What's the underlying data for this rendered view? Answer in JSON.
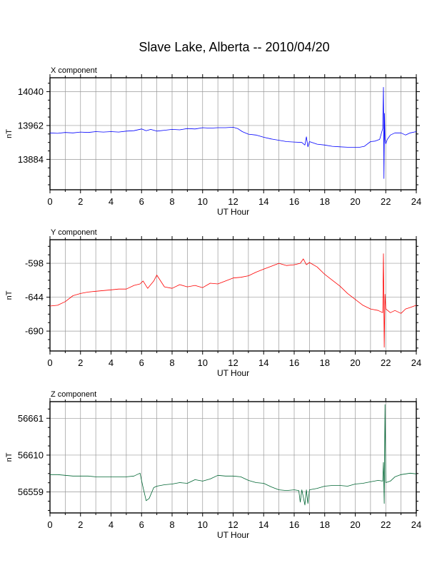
{
  "title": "Slave Lake, Alberta -- 2010/04/20",
  "chart_data": [
    {
      "type": "line",
      "component_label": "X component",
      "ylabel": "nT",
      "xlabel": "UT Hour",
      "color": "#0000ff",
      "xlim": [
        0,
        24
      ],
      "ylim": [
        13814,
        14072
      ],
      "x_ticks": [
        "0",
        "2",
        "4",
        "6",
        "8",
        "10",
        "12",
        "14",
        "16",
        "18",
        "20",
        "22",
        "24"
      ],
      "y_ticks": [
        13884,
        13962,
        14040
      ],
      "y_tick_labels": [
        "13884",
        "13962",
        "14040"
      ],
      "grid": true,
      "series": [
        {
          "x": [
            0,
            0.5,
            1,
            1.5,
            2,
            2.5,
            3,
            3.5,
            4,
            4.5,
            5,
            5.5,
            6,
            6.3,
            6.6,
            7,
            7.5,
            8,
            8.5,
            9,
            9.5,
            10,
            10.5,
            11,
            11.5,
            12,
            12.3,
            12.6,
            13,
            13.5,
            14,
            14.5,
            15,
            15.5,
            16,
            16.5,
            16.7,
            16.8,
            16.9,
            17,
            17.5,
            18,
            18.5,
            19,
            19.5,
            20,
            20.3,
            20.6,
            21,
            21.3,
            21.6,
            21.8,
            21.85,
            21.88,
            21.92,
            21.95,
            22,
            22.1,
            22.3,
            22.6,
            23,
            23.3,
            23.6,
            24
          ],
          "values": [
            13945,
            13944,
            13946,
            13945,
            13947,
            13946,
            13948,
            13947,
            13948,
            13947,
            13949,
            13950,
            13954,
            13950,
            13953,
            13949,
            13951,
            13953,
            13952,
            13955,
            13954,
            13957,
            13956,
            13957,
            13957,
            13958,
            13955,
            13948,
            13942,
            13940,
            13935,
            13931,
            13928,
            13925,
            13924,
            13923,
            13917,
            13936,
            13913,
            13925,
            13919,
            13917,
            13914,
            13913,
            13912,
            13912,
            13912,
            13914,
            13925,
            13926,
            13930,
            13955,
            14050,
            13840,
            13990,
            13930,
            13920,
            13930,
            13940,
            13945,
            13945,
            13940,
            13945,
            13948
          ]
        }
      ]
    },
    {
      "type": "line",
      "component_label": "Y component",
      "ylabel": "nT",
      "xlabel": "UT Hour",
      "color": "#ff0000",
      "xlim": [
        0,
        24
      ],
      "ylim": [
        -717,
        -566
      ],
      "x_ticks": [
        "0",
        "2",
        "4",
        "6",
        "8",
        "10",
        "12",
        "14",
        "16",
        "18",
        "20",
        "22",
        "24"
      ],
      "y_ticks": [
        -690,
        -644,
        -598
      ],
      "y_tick_labels": [
        "-690",
        "-644",
        "-598"
      ],
      "grid": true,
      "series": [
        {
          "x": [
            0,
            0.5,
            1,
            1.5,
            2,
            2.5,
            3,
            3.5,
            4,
            4.5,
            5,
            5.5,
            5.9,
            6.1,
            6.4,
            6.8,
            7,
            7.5,
            8,
            8.5,
            9,
            9.5,
            10,
            10.5,
            11,
            11.5,
            12,
            12.5,
            13,
            13.5,
            14,
            14.5,
            15,
            15.5,
            16,
            16.4,
            16.6,
            16.8,
            17,
            17.5,
            18,
            18.5,
            19,
            19.5,
            20,
            20.5,
            21,
            21.5,
            21.8,
            21.85,
            21.9,
            21.95,
            22,
            22.3,
            22.6,
            23,
            23.3,
            23.6,
            24
          ],
          "values": [
            -656,
            -655,
            -650,
            -642,
            -639,
            -637,
            -636,
            -635,
            -634,
            -633,
            -633,
            -628,
            -626,
            -622,
            -632,
            -622,
            -614,
            -630,
            -632,
            -627,
            -630,
            -628,
            -631,
            -625,
            -626,
            -622,
            -618,
            -617,
            -615,
            -610,
            -606,
            -602,
            -598,
            -601,
            -600,
            -598,
            -592,
            -600,
            -597,
            -603,
            -613,
            -621,
            -629,
            -639,
            -647,
            -655,
            -660,
            -662,
            -665,
            -585,
            -712,
            -640,
            -660,
            -665,
            -662,
            -666,
            -660,
            -658,
            -655
          ]
        }
      ]
    },
    {
      "type": "line",
      "component_label": "Z component",
      "ylabel": "nT",
      "xlabel": "UT Hour",
      "color": "#006633",
      "xlim": [
        0,
        24
      ],
      "ylim": [
        56530,
        56684
      ],
      "x_ticks": [
        "0",
        "2",
        "4",
        "6",
        "8",
        "10",
        "12",
        "14",
        "16",
        "18",
        "20",
        "22",
        "24"
      ],
      "y_ticks": [
        56559,
        56610,
        56661
      ],
      "y_tick_labels": [
        "56559",
        "56610",
        "56661"
      ],
      "grid": true,
      "series": [
        {
          "x": [
            0,
            0.5,
            1,
            1.5,
            2,
            2.5,
            3,
            3.5,
            4,
            4.5,
            5,
            5.5,
            5.9,
            6.1,
            6.3,
            6.5,
            6.8,
            7,
            7.5,
            8,
            8.5,
            9,
            9.5,
            10,
            10.5,
            11,
            11.5,
            12,
            12.5,
            13,
            13.5,
            14,
            14.5,
            15,
            15.5,
            16,
            16.3,
            16.4,
            16.5,
            16.7,
            16.8,
            16.9,
            17,
            17.5,
            18,
            18.5,
            19,
            19.5,
            20,
            20.5,
            21,
            21.5,
            21.8,
            21.85,
            21.9,
            21.95,
            22,
            22.3,
            22.6,
            23,
            23.3,
            23.6,
            24
          ],
          "values": [
            56583,
            56583,
            56582,
            56581,
            56581,
            56581,
            56580,
            56580,
            56580,
            56580,
            56580,
            56581,
            56585,
            56565,
            56547,
            56550,
            56565,
            56567,
            56569,
            56570,
            56572,
            56571,
            56576,
            56574,
            56577,
            56582,
            56581,
            56581,
            56580,
            56575,
            56572,
            56571,
            56566,
            56562,
            56561,
            56562,
            56561,
            56545,
            56562,
            56541,
            56562,
            56543,
            56562,
            56564,
            56567,
            56568,
            56568,
            56567,
            56570,
            56571,
            56573,
            56575,
            56574,
            56600,
            56543,
            56680,
            56572,
            56574,
            56580,
            56583,
            56584,
            56585,
            56584
          ]
        }
      ]
    }
  ]
}
